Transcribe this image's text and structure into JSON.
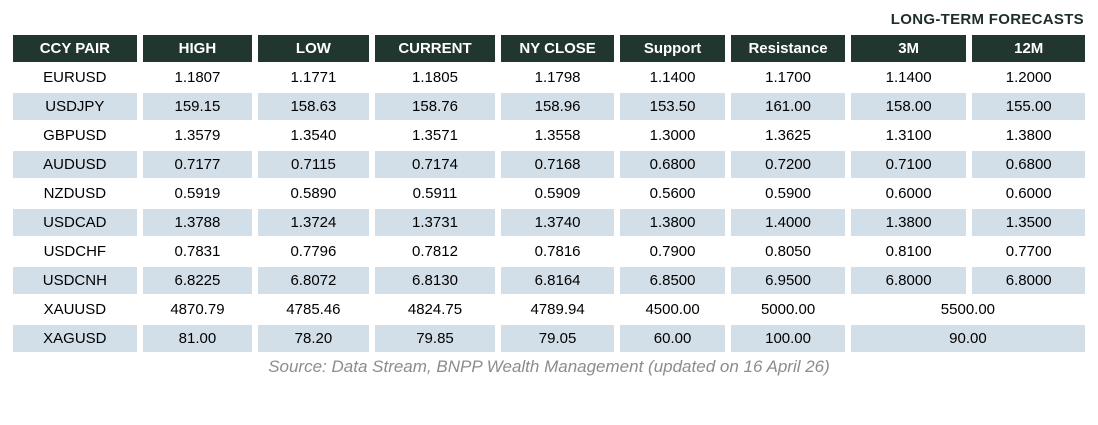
{
  "title": "LONG-TERM FORECASTS",
  "source_note": "Source: Data Stream, BNPP Wealth Management (updated on 16 April 26)",
  "colors": {
    "header_bg": "#21362f",
    "header_text": "#ffffff",
    "stripe_bg": "#d3dfe8",
    "title_text": "#1d2d28",
    "source_text": "#8c8c8c"
  },
  "table": {
    "columns": [
      "CCY PAIR",
      "HIGH",
      "LOW",
      "CURRENT",
      "NY CLOSE",
      "Support",
      "Resistance",
      "3M",
      "12M"
    ],
    "rows": [
      {
        "pair": "EURUSD",
        "high": "1.1807",
        "low": "1.1771",
        "current": "1.1805",
        "ny_close": "1.1798",
        "support": "1.1400",
        "resistance": "1.1700",
        "m3": "1.1400",
        "m12": "1.2000"
      },
      {
        "pair": "USDJPY",
        "high": "159.15",
        "low": "158.63",
        "current": "158.76",
        "ny_close": "158.96",
        "support": "153.50",
        "resistance": "161.00",
        "m3": "158.00",
        "m12": "155.00"
      },
      {
        "pair": "GBPUSD",
        "high": "1.3579",
        "low": "1.3540",
        "current": "1.3571",
        "ny_close": "1.3558",
        "support": "1.3000",
        "resistance": "1.3625",
        "m3": "1.3100",
        "m12": "1.3800"
      },
      {
        "pair": "AUDUSD",
        "high": "0.7177",
        "low": "0.7115",
        "current": "0.7174",
        "ny_close": "0.7168",
        "support": "0.6800",
        "resistance": "0.7200",
        "m3": "0.7100",
        "m12": "0.6800"
      },
      {
        "pair": "NZDUSD",
        "high": "0.5919",
        "low": "0.5890",
        "current": "0.5911",
        "ny_close": "0.5909",
        "support": "0.5600",
        "resistance": "0.5900",
        "m3": "0.6000",
        "m12": "0.6000"
      },
      {
        "pair": "USDCAD",
        "high": "1.3788",
        "low": "1.3724",
        "current": "1.3731",
        "ny_close": "1.3740",
        "support": "1.3800",
        "resistance": "1.4000",
        "m3": "1.3800",
        "m12": "1.3500"
      },
      {
        "pair": "USDCHF",
        "high": "0.7831",
        "low": "0.7796",
        "current": "0.7812",
        "ny_close": "0.7816",
        "support": "0.7900",
        "resistance": "0.8050",
        "m3": "0.8100",
        "m12": "0.7700"
      },
      {
        "pair": "USDCNH",
        "high": "6.8225",
        "low": "6.8072",
        "current": "6.8130",
        "ny_close": "6.8164",
        "support": "6.8500",
        "resistance": "6.9500",
        "m3": "6.8000",
        "m12": "6.8000"
      },
      {
        "pair": "XAUUSD",
        "high": "4870.79",
        "low": "4785.46",
        "current": "4824.75",
        "ny_close": "4789.94",
        "support": "4500.00",
        "resistance": "5000.00",
        "forecast_merged": "5500.00"
      },
      {
        "pair": "XAGUSD",
        "high": "81.00",
        "low": "78.20",
        "current": "79.85",
        "ny_close": "79.05",
        "support": "60.00",
        "resistance": "100.00",
        "forecast_merged": "90.00"
      }
    ]
  }
}
